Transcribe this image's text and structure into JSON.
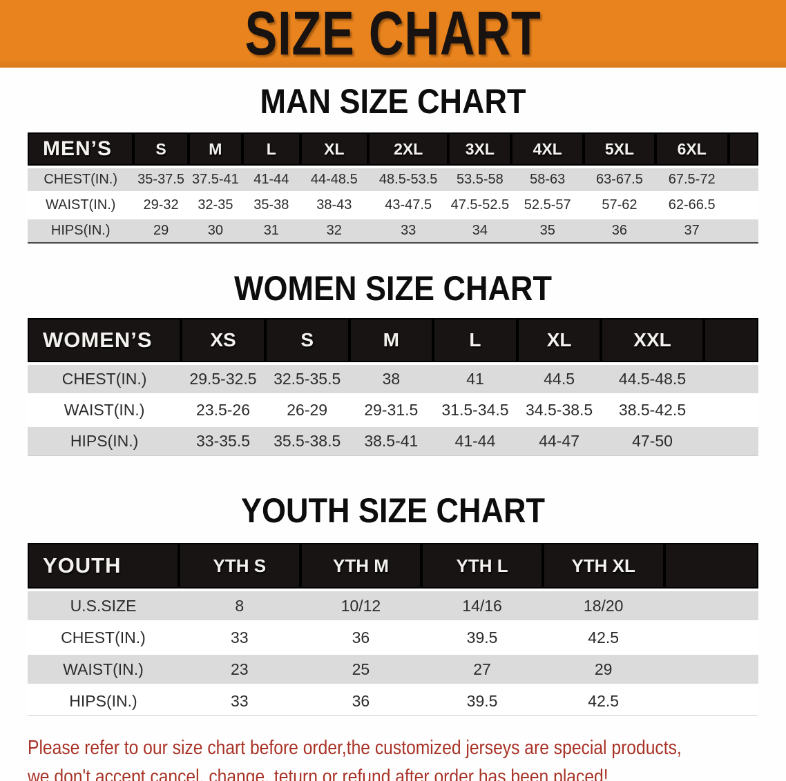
{
  "banner": {
    "title": "SIZE CHART"
  },
  "sections": [
    {
      "key": "men",
      "heading": "MAN SIZE CHART",
      "table": {
        "group_label": "MEN’S",
        "columns": [
          "S",
          "M",
          "L",
          "XL",
          "2XL",
          "3XL",
          "4XL",
          "5XL",
          "6XL"
        ],
        "rows": [
          {
            "label": "CHEST(IN.)",
            "values": [
              "35-37.5",
              "37.5-41",
              "41-44",
              "44-48.5",
              "48.5-53.5",
              "53.5-58",
              "58-63",
              "63-67.5",
              "67.5-72"
            ]
          },
          {
            "label": "WAIST(IN.)",
            "values": [
              "29-32",
              "32-35",
              "35-38",
              "38-43",
              "43-47.5",
              "47.5-52.5",
              "52.5-57",
              "57-62",
              "62-66.5"
            ]
          },
          {
            "label": "HIPS(IN.)",
            "values": [
              "29",
              "30",
              "31",
              "32",
              "33",
              "34",
              "35",
              "36",
              "37"
            ]
          }
        ]
      }
    },
    {
      "key": "women",
      "heading": "WOMEN SIZE CHART",
      "table": {
        "group_label": "WOMEN’S",
        "columns": [
          "XS",
          "S",
          "M",
          "L",
          "XL",
          "XXL"
        ],
        "rows": [
          {
            "label": "CHEST(IN.)",
            "values": [
              "29.5-32.5",
              "32.5-35.5",
              "38",
              "41",
              "44.5",
              "44.5-48.5"
            ]
          },
          {
            "label": "WAIST(IN.)",
            "values": [
              "23.5-26",
              "26-29",
              "29-31.5",
              "31.5-34.5",
              "34.5-38.5",
              "38.5-42.5"
            ]
          },
          {
            "label": "HIPS(IN.)",
            "values": [
              "33-35.5",
              "35.5-38.5",
              "38.5-41",
              "41-44",
              "44-47",
              "47-50"
            ]
          }
        ]
      }
    },
    {
      "key": "youth",
      "heading": "YOUTH SIZE CHART",
      "table": {
        "group_label": "YOUTH",
        "columns": [
          "YTH S",
          "YTH M",
          "YTH L",
          "YTH XL"
        ],
        "rows": [
          {
            "label": "U.S.SIZE",
            "values": [
              "8",
              "10/12",
              "14/16",
              "18/20"
            ]
          },
          {
            "label": "CHEST(IN.)",
            "values": [
              "33",
              "36",
              "39.5",
              "42.5"
            ]
          },
          {
            "label": "WAIST(IN.)",
            "values": [
              "23",
              "25",
              "27",
              "29"
            ]
          },
          {
            "label": "HIPS(IN.)",
            "values": [
              "33",
              "36",
              "39.5",
              "42.5"
            ]
          }
        ]
      }
    }
  ],
  "footnote": {
    "line1": "Please refer to our size chart before order,the customized jerseys are special products,",
    "line2": "we don't accept cancel, change, teturn or refund after order has been placed!"
  },
  "colors": {
    "banner_orange": "#E8831E",
    "header_black": "#191414",
    "row_gray": "#DBDBDB",
    "footnote_red": "#A93226"
  }
}
